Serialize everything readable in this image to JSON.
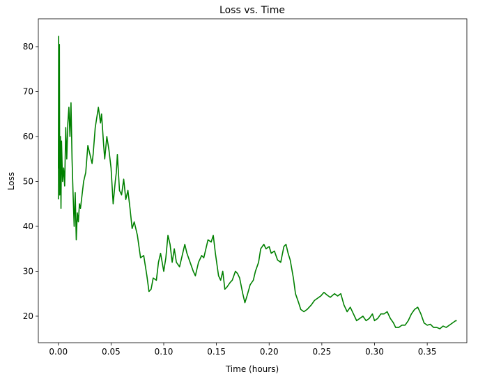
{
  "chart_data": {
    "type": "line",
    "title": "Loss vs. Time",
    "x_label": "Time (hours)",
    "y_label": "Loss",
    "color": "#008000",
    "x": [
      0.0,
      0.0003,
      0.0006,
      0.001,
      0.0013,
      0.002,
      0.0025,
      0.003,
      0.004,
      0.005,
      0.006,
      0.007,
      0.008,
      0.009,
      0.01,
      0.011,
      0.012,
      0.013,
      0.014,
      0.015,
      0.016,
      0.017,
      0.018,
      0.019,
      0.02,
      0.021,
      0.022,
      0.024,
      0.026,
      0.028,
      0.03,
      0.032,
      0.033,
      0.035,
      0.037,
      0.038,
      0.04,
      0.041,
      0.043,
      0.044,
      0.046,
      0.048,
      0.05,
      0.052,
      0.054,
      0.055,
      0.056,
      0.058,
      0.06,
      0.062,
      0.064,
      0.066,
      0.068,
      0.07,
      0.072,
      0.075,
      0.078,
      0.081,
      0.084,
      0.086,
      0.088,
      0.09,
      0.093,
      0.095,
      0.097,
      0.1,
      0.102,
      0.104,
      0.106,
      0.108,
      0.11,
      0.112,
      0.115,
      0.118,
      0.12,
      0.122,
      0.125,
      0.128,
      0.13,
      0.133,
      0.136,
      0.138,
      0.14,
      0.142,
      0.145,
      0.147,
      0.149,
      0.152,
      0.154,
      0.156,
      0.158,
      0.16,
      0.163,
      0.165,
      0.168,
      0.17,
      0.172,
      0.175,
      0.177,
      0.179,
      0.182,
      0.185,
      0.187,
      0.19,
      0.192,
      0.195,
      0.197,
      0.2,
      0.202,
      0.205,
      0.208,
      0.211,
      0.214,
      0.216,
      0.218,
      0.22,
      0.223,
      0.225,
      0.228,
      0.23,
      0.233,
      0.236,
      0.24,
      0.243,
      0.246,
      0.249,
      0.252,
      0.255,
      0.258,
      0.262,
      0.265,
      0.268,
      0.271,
      0.274,
      0.277,
      0.28,
      0.283,
      0.286,
      0.289,
      0.292,
      0.295,
      0.298,
      0.3,
      0.303,
      0.306,
      0.309,
      0.312,
      0.315,
      0.318,
      0.32,
      0.323,
      0.326,
      0.329,
      0.332,
      0.335,
      0.338,
      0.341,
      0.344,
      0.347,
      0.35,
      0.353,
      0.356,
      0.359,
      0.362,
      0.365,
      0.368,
      0.371,
      0.374,
      0.377,
      0.378
    ],
    "values": [
      46,
      82.3,
      53,
      80.5,
      47,
      60,
      44,
      59,
      50,
      53,
      49,
      62,
      55,
      63,
      66.5,
      60,
      67.5,
      55,
      47,
      40,
      47.5,
      37,
      43,
      41,
      45,
      44,
      46,
      50,
      52,
      58,
      56,
      54,
      56,
      62,
      65,
      66.5,
      63,
      65,
      58,
      55,
      60,
      57,
      53,
      45,
      50,
      52,
      56,
      48,
      47,
      50.5,
      46,
      48,
      44,
      39.5,
      41,
      38,
      33,
      33.5,
      29,
      25.5,
      26,
      28.5,
      28,
      32,
      34,
      30,
      33,
      38,
      36,
      32,
      35,
      32,
      31,
      34,
      36,
      34,
      32,
      30,
      29,
      32,
      33.5,
      33,
      35,
      37,
      36.5,
      38,
      34,
      29,
      28,
      30,
      26,
      26.5,
      27.5,
      28,
      30,
      29.5,
      28.5,
      25,
      23,
      24.5,
      27,
      28,
      30,
      32,
      35,
      36,
      35,
      35.5,
      34,
      34.5,
      32.5,
      32,
      35.5,
      36,
      34,
      32.5,
      28.5,
      25,
      23,
      21.5,
      21,
      21.5,
      22.5,
      23.5,
      24,
      24.5,
      25.3,
      24.7,
      24.2,
      25,
      24.5,
      25,
      22.5,
      21,
      22,
      20.5,
      19,
      19.5,
      20,
      19,
      19.5,
      20.5,
      19,
      19.5,
      20.5,
      20.5,
      21,
      19.5,
      18.5,
      17.5,
      17.5,
      18,
      18,
      19,
      20.5,
      21.5,
      22,
      20.5,
      18.5,
      18,
      18.2,
      17.5,
      17.5,
      17.2,
      17.8,
      17.5,
      18,
      18.5,
      19,
      19
    ],
    "xlim": [
      -0.019,
      0.3876
    ],
    "ylim": [
      14.1,
      86.2
    ],
    "xticks": [
      {
        "value": 0,
        "label": "0.00"
      },
      {
        "value": 0.05,
        "label": "0.05"
      },
      {
        "value": 0.1,
        "label": "0.10"
      },
      {
        "value": 0.15,
        "label": "0.15"
      },
      {
        "value": 0.2,
        "label": "0.20"
      },
      {
        "value": 0.25,
        "label": "0.25"
      },
      {
        "value": 0.3,
        "label": "0.30"
      },
      {
        "value": 0.35,
        "label": "0.35"
      }
    ],
    "yticks": [
      20,
      30,
      40,
      50,
      60,
      70,
      80
    ]
  }
}
